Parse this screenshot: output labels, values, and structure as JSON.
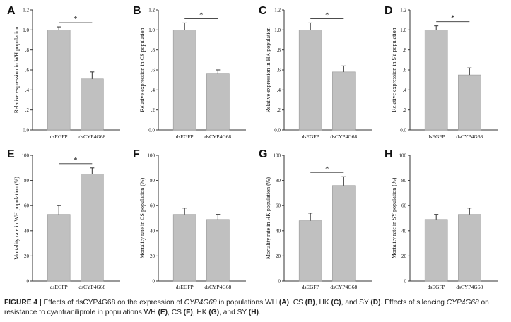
{
  "figure": {
    "caption_label": "FIGURE 4 |",
    "caption_parts": [
      {
        "text": " Effects of dsCYP4G68 on the expression of ",
        "style": "normal"
      },
      {
        "text": "CYP4G68",
        "style": "italic"
      },
      {
        "text": " in populations WH ",
        "style": "normal"
      },
      {
        "text": "(A)",
        "style": "bold"
      },
      {
        "text": ", CS ",
        "style": "normal"
      },
      {
        "text": "(B)",
        "style": "bold"
      },
      {
        "text": ", HK ",
        "style": "normal"
      },
      {
        "text": "(C)",
        "style": "bold"
      },
      {
        "text": ", and SY ",
        "style": "normal"
      },
      {
        "text": "(D)",
        "style": "bold"
      },
      {
        "text": ". Effects of silencing ",
        "style": "normal"
      },
      {
        "text": "CYP4G68",
        "style": "italic"
      },
      {
        "text": " on resistance to cyantraniliprole in populations WH ",
        "style": "normal"
      },
      {
        "text": "(E)",
        "style": "bold"
      },
      {
        "text": ", CS ",
        "style": "normal"
      },
      {
        "text": "(F)",
        "style": "bold"
      },
      {
        "text": ", HK ",
        "style": "normal"
      },
      {
        "text": "(G)",
        "style": "bold"
      },
      {
        "text": ", and SY ",
        "style": "normal"
      },
      {
        "text": "(H)",
        "style": "bold"
      },
      {
        "text": ".",
        "style": "normal"
      }
    ]
  },
  "colors": {
    "bar": "#c0c0c0",
    "bar_stroke": "#9a9a9a",
    "axis": "#333333"
  },
  "chart_data": [
    {
      "panel": "A",
      "type": "bar",
      "categories": [
        "dsEGFP",
        "dsCYP4G68"
      ],
      "values": [
        1.0,
        0.51
      ],
      "errors": [
        0.03,
        0.07
      ],
      "ylabel": "Relative expression in WH population",
      "ylim": [
        0,
        1.2
      ],
      "yticks": [
        "0.0",
        ".2",
        ".4",
        ".6",
        ".8",
        "1.0",
        "1.2"
      ],
      "significance": "*"
    },
    {
      "panel": "B",
      "type": "bar",
      "categories": [
        "dsEGFP",
        "dsCYP4G68"
      ],
      "values": [
        1.0,
        0.56
      ],
      "errors": [
        0.07,
        0.04
      ],
      "ylabel": "Relative expression in CS population",
      "ylim": [
        0,
        1.2
      ],
      "yticks": [
        "0.0",
        ".2",
        ".4",
        ".6",
        ".8",
        "1.0",
        "1.2"
      ],
      "significance": "*"
    },
    {
      "panel": "C",
      "type": "bar",
      "categories": [
        "dsEGFP",
        "dsCYP4G68"
      ],
      "values": [
        1.0,
        0.58
      ],
      "errors": [
        0.07,
        0.06
      ],
      "ylabel": "Relative expression in HK population",
      "ylim": [
        0,
        1.2
      ],
      "yticks": [
        "0.0",
        ".2",
        ".4",
        ".6",
        ".8",
        "1.0",
        "1.2"
      ],
      "significance": "*"
    },
    {
      "panel": "D",
      "type": "bar",
      "categories": [
        "dsEGFP",
        "dsCYP4G68"
      ],
      "values": [
        1.0,
        0.55
      ],
      "errors": [
        0.04,
        0.07
      ],
      "ylabel": "Relative expression in SY population",
      "ylim": [
        0,
        1.2
      ],
      "yticks": [
        "0.0",
        ".2",
        ".4",
        ".6",
        ".8",
        "1.0",
        "1.2"
      ],
      "significance": "*"
    },
    {
      "panel": "E",
      "type": "bar",
      "categories": [
        "dsEGFP",
        "dsCYP4G68"
      ],
      "values": [
        53,
        85
      ],
      "errors": [
        7,
        5
      ],
      "ylabel": "Mortality rate in WH population (%)",
      "ylim": [
        0,
        100
      ],
      "yticks": [
        "0",
        "20",
        "40",
        "60",
        "80",
        "100"
      ],
      "significance": "*"
    },
    {
      "panel": "F",
      "type": "bar",
      "categories": [
        "dsEGFP",
        "dsCYP4G68"
      ],
      "values": [
        53,
        49
      ],
      "errors": [
        5,
        4
      ],
      "ylabel": "Mortality rate in CS population (%)",
      "ylim": [
        0,
        100
      ],
      "yticks": [
        "0",
        "20",
        "40",
        "60",
        "80",
        "100"
      ],
      "significance": ""
    },
    {
      "panel": "G",
      "type": "bar",
      "categories": [
        "dsEGFP",
        "dsCYP4G68"
      ],
      "values": [
        48,
        76
      ],
      "errors": [
        6,
        7
      ],
      "ylabel": "Mortality rate in HK population (%)",
      "ylim": [
        0,
        100
      ],
      "yticks": [
        "0",
        "20",
        "40",
        "60",
        "80",
        "100"
      ],
      "significance": "*"
    },
    {
      "panel": "H",
      "type": "bar",
      "categories": [
        "dsEGFP",
        "dsCYP4G68"
      ],
      "values": [
        49,
        53
      ],
      "errors": [
        4,
        5
      ],
      "ylabel": "Mortality rate in SY population (%)",
      "ylim": [
        0,
        100
      ],
      "yticks": [
        "0",
        "20",
        "40",
        "60",
        "80",
        "100"
      ],
      "significance": ""
    }
  ]
}
